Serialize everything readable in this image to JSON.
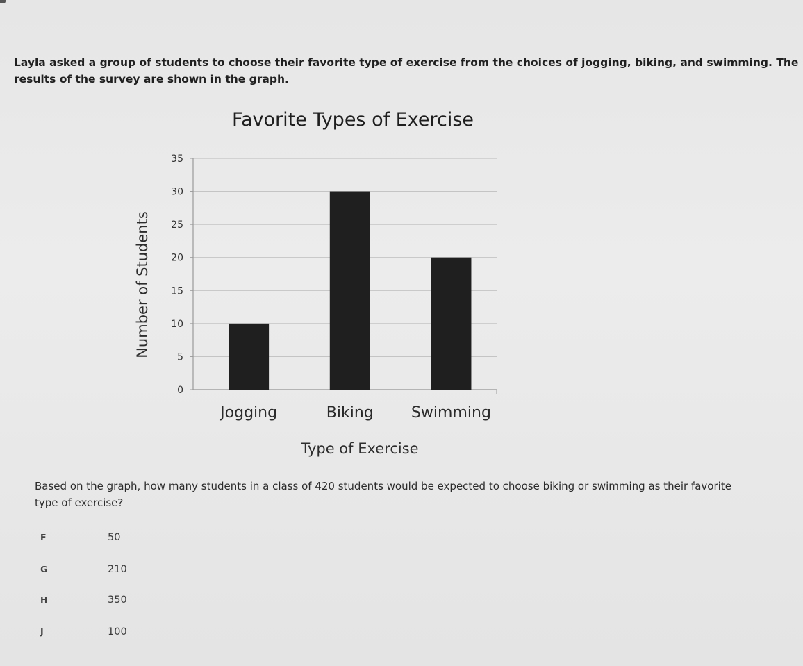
{
  "question": {
    "intro": "Layla asked a group of students to choose their favorite type of exercise from the choices of jogging, biking, and swimming.  The results of the survey are shown in the graph.",
    "prompt": "Based on the graph, how many students in a class of 420 students would be expected to choose biking or swimming as their favorite type of exercise?",
    "choices": [
      {
        "letter": "F",
        "value": "50"
      },
      {
        "letter": "G",
        "value": "210"
      },
      {
        "letter": "H",
        "value": "350"
      },
      {
        "letter": "J",
        "value": "100"
      }
    ]
  },
  "chart_data": {
    "type": "bar",
    "title": "Favorite Types of Exercise",
    "xlabel": "Type of Exercise",
    "ylabel": "Number of Students",
    "categories": [
      "Jogging",
      "Biking",
      "Swimming"
    ],
    "values": [
      10,
      30,
      20
    ],
    "ylim": [
      0,
      35
    ],
    "yticks": [
      0,
      5,
      10,
      15,
      20,
      25,
      30,
      35
    ],
    "grid": true,
    "legend": "none",
    "bar_color": "#1f1f1f"
  }
}
